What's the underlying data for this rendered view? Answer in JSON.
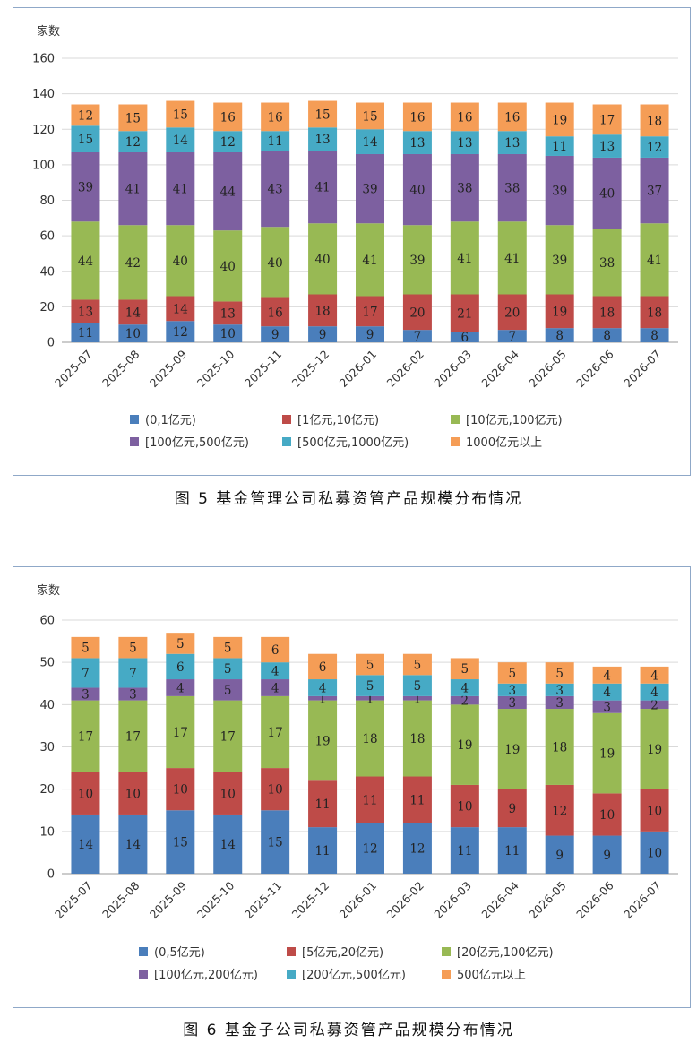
{
  "figures": [
    {
      "caption": "图 5   基金管理公司私募资管产品规模分布情况",
      "chart_data": {
        "type": "bar",
        "stacked": true,
        "ylabel": "家数",
        "ylim": [
          0,
          160
        ],
        "yticks": [
          0,
          20,
          40,
          60,
          80,
          100,
          120,
          140,
          160
        ],
        "categories": [
          "2025-07",
          "2025-08",
          "2025-09",
          "2025-10",
          "2025-11",
          "2025-12",
          "2026-01",
          "2026-02",
          "2026-03",
          "2026-04",
          "2026-05",
          "2026-06",
          "2026-07"
        ],
        "series": [
          {
            "name": "(0,1亿元)",
            "color": "#4a7ebb",
            "values": [
              11,
              10,
              12,
              10,
              9,
              9,
              9,
              7,
              6,
              7,
              8,
              8,
              8
            ]
          },
          {
            "name": "[1亿元,10亿元)",
            "color": "#be4b48",
            "values": [
              13,
              14,
              14,
              13,
              16,
              18,
              17,
              20,
              21,
              20,
              19,
              18,
              18
            ]
          },
          {
            "name": "[10亿元,100亿元)",
            "color": "#98b954",
            "values": [
              44,
              42,
              40,
              40,
              40,
              40,
              41,
              39,
              41,
              41,
              39,
              38,
              41
            ]
          },
          {
            "name": "[100亿元,500亿元)",
            "color": "#7d60a0",
            "values": [
              39,
              41,
              41,
              44,
              43,
              41,
              39,
              40,
              38,
              38,
              39,
              40,
              37
            ]
          },
          {
            "name": "[500亿元,1000亿元)",
            "color": "#46aac5",
            "values": [
              15,
              12,
              14,
              12,
              11,
              13,
              14,
              13,
              13,
              13,
              11,
              13,
              12
            ]
          },
          {
            "name": "1000亿元以上",
            "color": "#f59d56",
            "values": [
              12,
              15,
              15,
              16,
              16,
              15,
              15,
              16,
              16,
              16,
              19,
              17,
              18
            ]
          }
        ],
        "legend_position": "bottom",
        "grid": true
      }
    },
    {
      "caption": "图 6   基金子公司私募资管产品规模分布情况",
      "chart_data": {
        "type": "bar",
        "stacked": true,
        "ylabel": "家数",
        "ylim": [
          0,
          60
        ],
        "yticks": [
          0,
          10,
          20,
          30,
          40,
          50,
          60
        ],
        "categories": [
          "2025-07",
          "2025-08",
          "2025-09",
          "2025-10",
          "2025-11",
          "2025-12",
          "2026-01",
          "2026-02",
          "2026-03",
          "2026-04",
          "2026-05",
          "2026-06",
          "2026-07"
        ],
        "series": [
          {
            "name": "(0,5亿元)",
            "color": "#4a7ebb",
            "values": [
              14,
              14,
              15,
              14,
              15,
              11,
              12,
              12,
              11,
              11,
              9,
              9,
              10
            ]
          },
          {
            "name": "[5亿元,20亿元)",
            "color": "#be4b48",
            "values": [
              10,
              10,
              10,
              10,
              10,
              11,
              11,
              11,
              10,
              9,
              12,
              10,
              10
            ]
          },
          {
            "name": "[20亿元,100亿元)",
            "color": "#98b954",
            "values": [
              17,
              17,
              17,
              17,
              17,
              19,
              18,
              18,
              19,
              19,
              18,
              19,
              19
            ]
          },
          {
            "name": "[100亿元,200亿元)",
            "color": "#7d60a0",
            "values": [
              3,
              3,
              4,
              5,
              4,
              1,
              1,
              1,
              2,
              3,
              3,
              3,
              2
            ]
          },
          {
            "name": "[200亿元,500亿元)",
            "color": "#46aac5",
            "values": [
              7,
              7,
              6,
              5,
              4,
              4,
              5,
              5,
              4,
              3,
              3,
              4,
              4
            ]
          },
          {
            "name": "500亿元以上",
            "color": "#f59d56",
            "values": [
              5,
              5,
              5,
              5,
              6,
              6,
              5,
              5,
              5,
              5,
              5,
              4,
              4
            ]
          }
        ],
        "legend_position": "bottom",
        "grid": true
      }
    }
  ]
}
